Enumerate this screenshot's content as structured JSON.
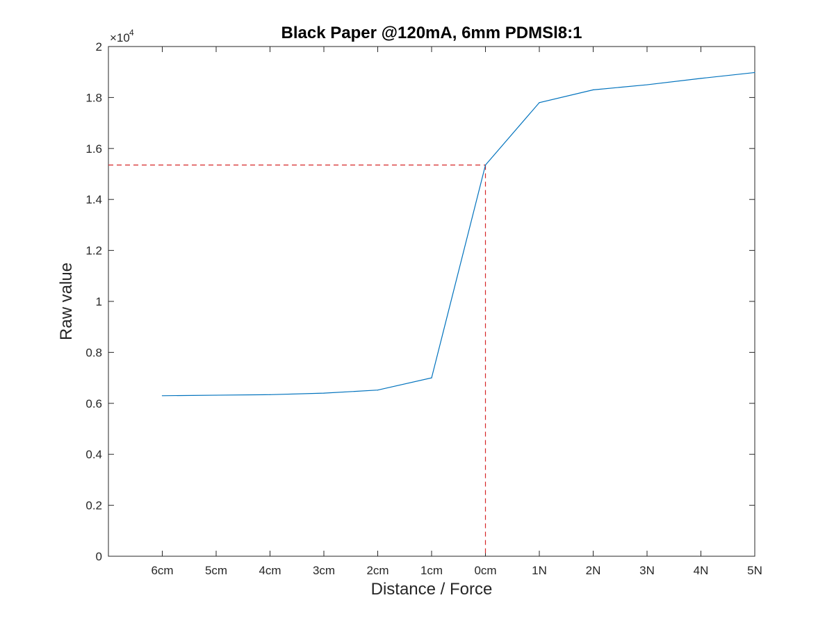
{
  "chart_data": {
    "type": "line",
    "title": "Black Paper @120mA, 6mm PDMSl8:1",
    "xlabel": "Distance / Force",
    "ylabel": "Raw value",
    "y_multiplier_label": "×10",
    "y_multiplier_exponent": "4",
    "categories": [
      "6cm",
      "5cm",
      "4cm",
      "3cm",
      "2cm",
      "1cm",
      "0cm",
      "1N",
      "2N",
      "3N",
      "4N",
      "5N"
    ],
    "series": [
      {
        "values": [
          6300,
          6320,
          6340,
          6400,
          6520,
          7000,
          15350,
          17800,
          18300,
          18500,
          18750,
          18980
        ],
        "color": "#0072bd"
      }
    ],
    "reference_lines": {
      "color": "#d62728",
      "style": "dashed",
      "x_category": "0cm",
      "y_value": 15350
    },
    "ylim": [
      0,
      20000
    ],
    "xlim": [
      -1,
      11
    ],
    "y_ticks": [
      0,
      2000,
      4000,
      6000,
      8000,
      10000,
      12000,
      14000,
      16000,
      18000,
      20000
    ],
    "y_tick_labels": [
      "0",
      "0.2",
      "0.4",
      "0.6",
      "0.8",
      "1",
      "1.2",
      "1.4",
      "1.6",
      "1.8",
      "2"
    ],
    "grid": false,
    "box": true
  }
}
